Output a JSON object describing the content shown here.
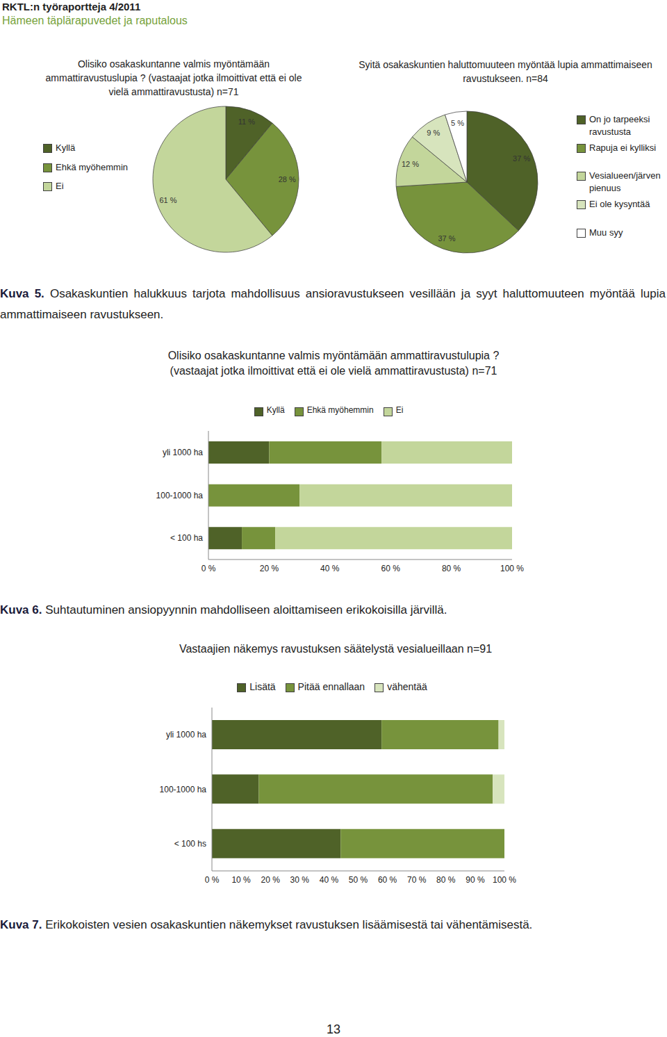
{
  "header": {
    "series": "RKTL:n työraportteja 4/2011",
    "title": "Hämeen täplärapuvedet ja raputalous"
  },
  "chart_data": [
    {
      "type": "pie",
      "title": "Olisiko osakaskuntanne valmis myöntämään ammattiravustuslupia ? (vastaajat jotka ilmoittivat että ei ole vielä ammattiravustusta) n=71",
      "categories": [
        "Kyllä",
        "Ehkä myöhemmin",
        "Ei"
      ],
      "values": [
        11,
        28,
        61
      ],
      "value_labels": [
        "11 %",
        "28 %",
        "61 %"
      ],
      "colors": [
        "#4f6228",
        "#77933c",
        "#c3d69b"
      ],
      "data_labels": true,
      "legend": "left"
    },
    {
      "type": "pie",
      "title": "Syitä osakaskuntien haluttomuuteen myöntää lupia ammattimaiseen ravustukseen. n=84",
      "categories": [
        "On jo tarpeeksi ravustusta",
        "Rapuja ei kylliksi",
        "Vesialueen/järven pienuus",
        "Ei ole kysyntää",
        "Muu syy"
      ],
      "values": [
        37,
        37,
        12,
        9,
        5
      ],
      "value_labels": [
        "37 %",
        "37 %",
        "12 %",
        "9 %",
        "5 %"
      ],
      "colors": [
        "#4f6228",
        "#77933c",
        "#c3d69b",
        "#d7e4bd",
        "#ffffff"
      ],
      "data_labels": true,
      "legend": "right"
    },
    {
      "type": "bar",
      "orientation": "horizontal",
      "stacked": true,
      "title": "Olisiko osakaskuntanne valmis myöntämään ammattiravustulupia ? (vastaajat jotka ilmoittivat että ei ole vielä ammattiravustusta) n=71",
      "categories": [
        "yli 1000 ha",
        "100-1000 ha",
        "< 100 ha"
      ],
      "series": [
        {
          "name": "Kyllä",
          "color": "#4f6228",
          "values": [
            20,
            0,
            11
          ]
        },
        {
          "name": "Ehkä myöhemmin",
          "color": "#77933c",
          "values": [
            37,
            30,
            11
          ]
        },
        {
          "name": "Ei",
          "color": "#c3d69b",
          "values": [
            43,
            70,
            78
          ]
        }
      ],
      "xlim": [
        0,
        100
      ],
      "xticks": [
        {
          "value": 0,
          "label": "0 %"
        },
        {
          "value": 20,
          "label": "20 %"
        },
        {
          "value": 40,
          "label": "40 %"
        },
        {
          "value": 60,
          "label": "60 %"
        },
        {
          "value": 80,
          "label": "80 %"
        },
        {
          "value": 100,
          "label": "100 %"
        }
      ],
      "legend": "top"
    },
    {
      "type": "bar",
      "orientation": "horizontal",
      "stacked": true,
      "title": "Vastaajien näkemys ravustuksen säätelystä vesialueillaan n=91",
      "categories": [
        "yli 1000 ha",
        "100-1000 ha",
        "< 100 hs"
      ],
      "series": [
        {
          "name": "Lisätä",
          "color": "#4f6228",
          "values": [
            58,
            16,
            44
          ]
        },
        {
          "name": "Pitää ennallaan",
          "color": "#77933c",
          "values": [
            40,
            80,
            56
          ]
        },
        {
          "name": "vähentää",
          "color": "#d7e4bd",
          "values": [
            2,
            4,
            0
          ]
        }
      ],
      "xlim": [
        0,
        100
      ],
      "xticks": [
        {
          "value": 0,
          "label": "0 %"
        },
        {
          "value": 10,
          "label": "10 %"
        },
        {
          "value": 20,
          "label": "20 %"
        },
        {
          "value": 30,
          "label": "30 %"
        },
        {
          "value": 40,
          "label": "40 %"
        },
        {
          "value": 50,
          "label": "50 %"
        },
        {
          "value": 60,
          "label": "60 %"
        },
        {
          "value": 70,
          "label": "70 %"
        },
        {
          "value": 80,
          "label": "80 %"
        },
        {
          "value": 90,
          "label": "90 %"
        },
        {
          "value": 100,
          "label": "100 %"
        }
      ],
      "legend": "top"
    }
  ],
  "captions": [
    {
      "label": "Kuva 5.",
      "text": "Osakaskuntien halukkuus tarjota mahdollisuus ansioravustukseen vesillään ja syyt haluttomuuteen myöntää lupia ammattimaiseen ravustukseen."
    },
    {
      "label": "Kuva 6.",
      "text": "Suhtautuminen ansiopyynnin mahdolliseen aloittamiseen erikokoisilla järvillä."
    },
    {
      "label": "Kuva 7.",
      "text": "Erikokoisten vesien osakaskuntien näkemykset ravustuksen lisäämisestä tai vähentämisestä."
    }
  ],
  "page_number": 13
}
